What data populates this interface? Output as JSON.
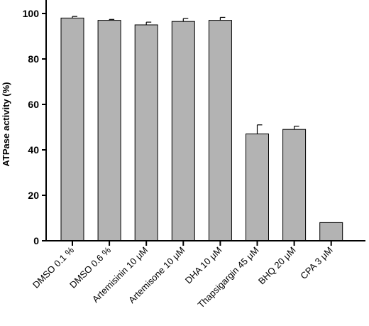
{
  "chart_data": {
    "type": "bar",
    "categories": [
      "DMSO 0.1 %",
      "DMSO 0.6 %",
      "Artemisinin 10 μM",
      "Artemisone 10 μM",
      "DHA 10 μM",
      "Thapsigargin 45 μM",
      "BHQ 20 μM",
      "CPA 3 μM"
    ],
    "values": [
      98,
      97,
      95,
      96.5,
      97,
      47,
      49,
      8
    ],
    "errors": [
      0.7,
      0.4,
      1.2,
      1.3,
      1.3,
      4,
      1.4,
      0
    ],
    "ylabel": "ATPase activity (%)",
    "xlabel": "",
    "ylim": [
      0,
      100
    ],
    "yticks": [
      0,
      20,
      40,
      60,
      80,
      100
    ],
    "bar_color": "#b3b3b3",
    "grid": false
  }
}
